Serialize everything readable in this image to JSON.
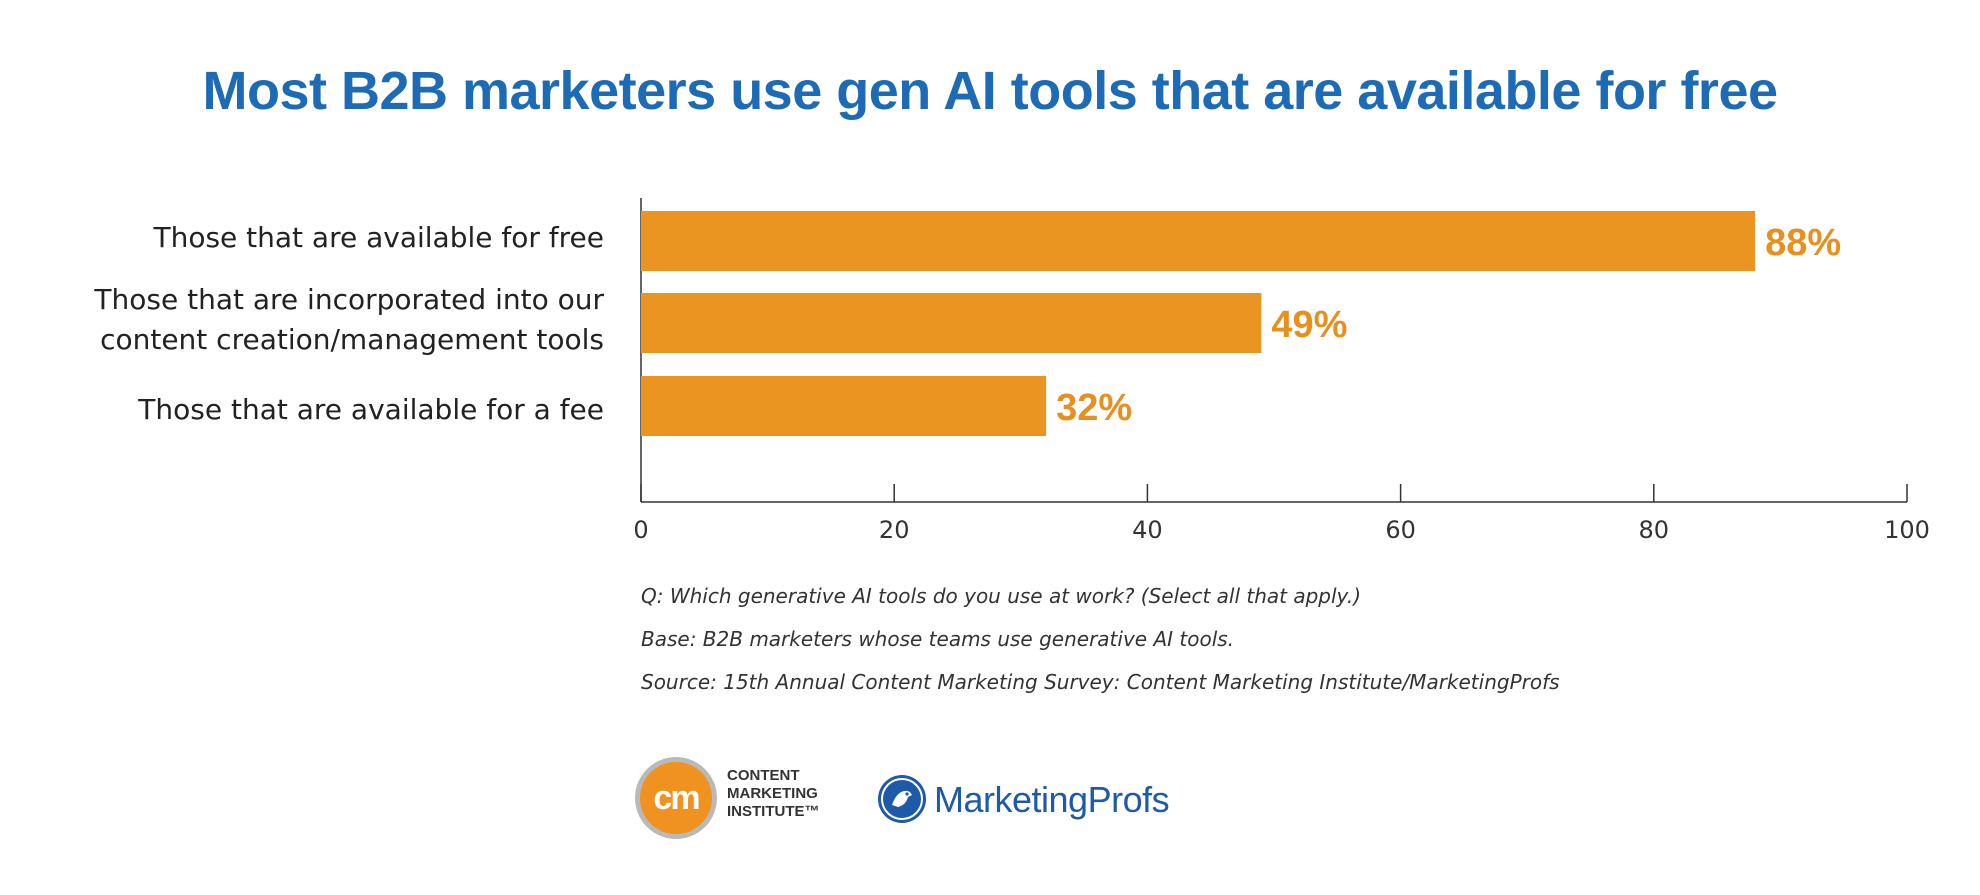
{
  "chart_data": {
    "type": "bar",
    "orientation": "horizontal",
    "title": "Most B2B marketers use gen AI tools that are available for free",
    "categories": [
      [
        "Those that are available for free"
      ],
      [
        "Those that are incorporated into our",
        "content creation/management tools"
      ],
      [
        "Those that are available for a fee"
      ]
    ],
    "values": [
      88,
      49,
      32
    ],
    "value_labels": [
      "88%",
      "49%",
      "32%"
    ],
    "xlim": [
      0,
      100
    ],
    "xticks": [
      0,
      20,
      40,
      60,
      80,
      100
    ],
    "grid": false,
    "legend": "none"
  },
  "colors": {
    "bar": "#ea9422",
    "value_label": "#e8901f",
    "title": "#1e6bb5",
    "axis": "#333333"
  },
  "footnotes": [
    "Q: Which generative AI tools do you use at work? (Select all that apply.)",
    "Base: B2B marketers whose teams use generative AI tools.",
    "Source: 15th Annual Content Marketing Survey: Content Marketing Institute/MarketingProfs"
  ],
  "logos": {
    "cmi_mark": "cm",
    "cmi_lines": [
      "CONTENT",
      "MARKETING",
      "INSTITUTE™"
    ],
    "marketingprofs": "MarketingProfs",
    "marketingprofs_icon": "rooster-icon"
  }
}
